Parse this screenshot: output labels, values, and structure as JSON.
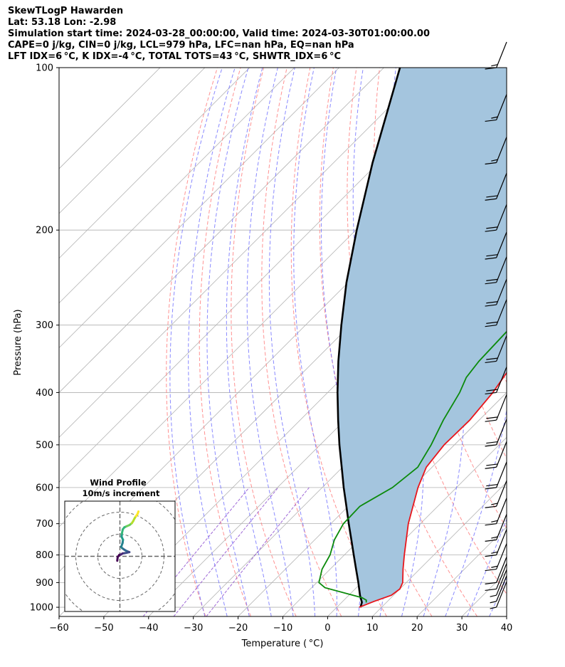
{
  "header": {
    "line1": "SkewTLogP Hawarden",
    "line2": "Lat: 53.18   Lon: -2.98",
    "line3": "Simulation start time: 2024-03-28_00:00:00, Valid time: 2024-03-30T01:00:00.00",
    "line4": "CAPE=0 j/kg, CIN=0 j/kg, LCL=979 hPa, LFC=nan hPa, EQ=nan hPa",
    "line5": "LFT IDX=6 °C, K IDX=-4 °C, TOTAL TOTS=43 °C, SHWTR_IDX=6 °C"
  },
  "chart_data": {
    "type": "skewt",
    "xlabel": "Temperature ( °C)",
    "ylabel": "Pressure (hPa)",
    "xlim": [
      -60,
      40
    ],
    "ylim": [
      1040,
      100
    ],
    "x_ticks": [
      -60,
      -50,
      -40,
      -30,
      -20,
      -10,
      0,
      10,
      20,
      30,
      40
    ],
    "p_ticks": [
      1000,
      900,
      800,
      700,
      600,
      500,
      400,
      300,
      200,
      100
    ],
    "grid": true,
    "colors": {
      "temperature": "#e8151b",
      "dewpoint": "#0b8a0b",
      "parcel": "#000000",
      "shade": "#a4c5de",
      "dry_adiabat": "#ff7f7f",
      "moist_adiabat": "#6b6bff",
      "mixing_ratio": "#8e4fd0",
      "isotherm": "#b3b3b3"
    },
    "temperature_profile": [
      [
        1000,
        5
      ],
      [
        975,
        7
      ],
      [
        950,
        9.5
      ],
      [
        925,
        10
      ],
      [
        900,
        9.2
      ],
      [
        850,
        6.3
      ],
      [
        800,
        3.4
      ],
      [
        700,
        -2.7
      ],
      [
        600,
        -8.6
      ],
      [
        550,
        -11.3
      ],
      [
        500,
        -12.3
      ],
      [
        450,
        -12.1
      ],
      [
        400,
        -13.1
      ],
      [
        350,
        -15.2
      ],
      [
        300,
        -17.5
      ],
      [
        275,
        -17.0
      ],
      [
        250,
        -14.7
      ],
      [
        225,
        -10.5
      ],
      [
        200,
        -4.5
      ],
      [
        175,
        0.5
      ],
      [
        150,
        3.8
      ],
      [
        137,
        4.6
      ],
      [
        125,
        5.0
      ],
      [
        110,
        8.0
      ],
      [
        100,
        12.0
      ]
    ],
    "dewpoint_profile": [
      [
        980,
        5.5
      ],
      [
        970,
        5
      ],
      [
        960,
        3.5
      ],
      [
        920,
        -7
      ],
      [
        900,
        -9.5
      ],
      [
        850,
        -11.8
      ],
      [
        800,
        -13.2
      ],
      [
        750,
        -15.6
      ],
      [
        700,
        -17.2
      ],
      [
        650,
        -17.4
      ],
      [
        600,
        -14.3
      ],
      [
        550,
        -13.2
      ],
      [
        500,
        -15.2
      ],
      [
        450,
        -18.0
      ],
      [
        400,
        -20.5
      ],
      [
        375,
        -22.4
      ],
      [
        350,
        -23.2
      ],
      [
        300,
        -23.7
      ],
      [
        275,
        -23.8
      ],
      [
        250,
        -23.0
      ],
      [
        225,
        -24.0
      ],
      [
        200,
        -26.5
      ],
      [
        185,
        -28.5
      ],
      [
        150,
        -20.4
      ],
      [
        125,
        -12.8
      ],
      [
        100,
        -10.0
      ]
    ],
    "parcel_profile": [
      [
        1000,
        5.3
      ],
      [
        979,
        4.5
      ],
      [
        950,
        2.5
      ],
      [
        900,
        -0.7
      ],
      [
        850,
        -4.2
      ],
      [
        800,
        -7.9
      ],
      [
        750,
        -11.8
      ],
      [
        700,
        -16.0
      ],
      [
        650,
        -20.4
      ],
      [
        600,
        -25.2
      ],
      [
        550,
        -30.2
      ],
      [
        500,
        -35.7
      ],
      [
        450,
        -41.5
      ],
      [
        400,
        -47.8
      ],
      [
        350,
        -54.6
      ],
      [
        300,
        -62.0
      ],
      [
        250,
        -70.4
      ],
      [
        200,
        -79.8
      ],
      [
        150,
        -91.3
      ],
      [
        100,
        -106.4
      ]
    ],
    "wind_barbs": [
      [
        1000,
        5,
        270
      ],
      [
        975,
        7,
        270
      ],
      [
        950,
        9,
        270
      ],
      [
        925,
        12,
        270
      ],
      [
        900,
        14,
        270
      ],
      [
        850,
        15,
        270
      ],
      [
        800,
        16,
        270
      ],
      [
        750,
        17,
        270
      ],
      [
        700,
        18,
        270
      ],
      [
        650,
        19,
        270
      ],
      [
        600,
        20,
        270
      ],
      [
        550,
        21,
        270
      ],
      [
        500,
        22,
        270
      ],
      [
        450,
        22,
        270
      ],
      [
        400,
        23,
        270
      ],
      [
        350,
        23,
        270
      ],
      [
        300,
        24,
        270
      ],
      [
        275,
        24,
        270
      ],
      [
        250,
        23,
        270
      ],
      [
        225,
        22,
        270
      ],
      [
        200,
        21,
        270
      ],
      [
        175,
        20,
        270
      ],
      [
        150,
        19,
        270
      ],
      [
        125,
        18,
        270
      ],
      [
        100,
        17,
        270
      ]
    ],
    "hodograph": {
      "title": "Wind Profile",
      "subtitle": "10m/s increment",
      "rings_ms": [
        10,
        20,
        30
      ],
      "range_ms": 25,
      "colormap": "viridis",
      "points": [
        [
          -1.2,
          -2
        ],
        [
          -1,
          -0.3
        ],
        [
          -0.3,
          0.6
        ],
        [
          0.5,
          0.8
        ],
        [
          1.2,
          1.3
        ],
        [
          2,
          1.4
        ],
        [
          3,
          1.6
        ],
        [
          4.3,
          1.9
        ],
        [
          3,
          2.4
        ],
        [
          2,
          3
        ],
        [
          1,
          3.7
        ],
        [
          0.6,
          4.3
        ],
        [
          1.2,
          6
        ],
        [
          1.4,
          7.5
        ],
        [
          0.8,
          8.8
        ],
        [
          0.9,
          10.3
        ],
        [
          1.3,
          12.2
        ],
        [
          2,
          13.1
        ],
        [
          3,
          13.6
        ],
        [
          4.4,
          14.2
        ],
        [
          5.4,
          15
        ],
        [
          6,
          15.9
        ],
        [
          6.6,
          17.1
        ],
        [
          7.3,
          18.2
        ],
        [
          8,
          19.2
        ],
        [
          8.4,
          20.3
        ]
      ]
    }
  }
}
